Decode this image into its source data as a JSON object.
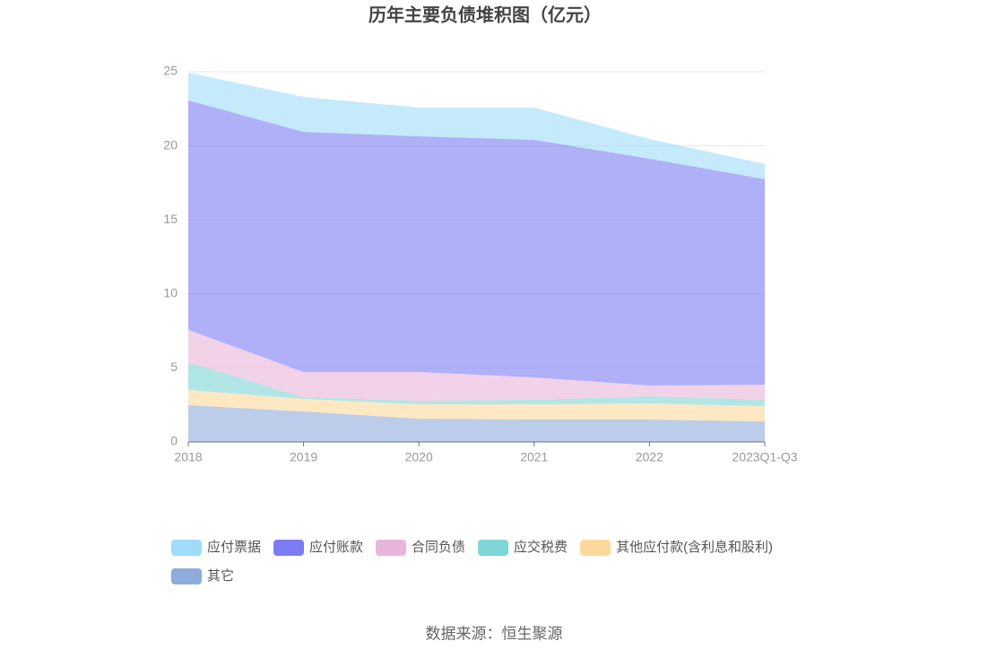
{
  "chart_data": {
    "type": "stacked_area",
    "title": "历年主要负债堆积图（亿元）",
    "categories": [
      "2018",
      "2019",
      "2020",
      "2021",
      "2022",
      "2023Q1-Q3"
    ],
    "series": [
      {
        "name": "应付票据",
        "color": "#9fdcf9",
        "values": [
          1.88,
          2.36,
          1.94,
          2.18,
          1.33,
          1.03
        ]
      },
      {
        "name": "应付账款",
        "color": "#7b7cf3",
        "values": [
          15.49,
          16.22,
          15.92,
          16.04,
          15.32,
          13.87
        ]
      },
      {
        "name": "合同负债",
        "color": "#e9b4d9",
        "values": [
          2.18,
          1.69,
          1.94,
          1.51,
          0.72,
          1.02
        ]
      },
      {
        "name": "应交税费",
        "color": "#7fd6d6",
        "values": [
          1.88,
          0.12,
          0.24,
          0.31,
          0.49,
          0.43
        ]
      },
      {
        "name": "其他应付款(含利息和股利)",
        "color": "#fcd99b",
        "values": [
          1.03,
          0.85,
          0.97,
          1.03,
          1.09,
          1.03
        ]
      },
      {
        "name": "其它",
        "color": "#8eabdc",
        "values": [
          2.48,
          2.06,
          1.57,
          1.51,
          1.51,
          1.39
        ]
      }
    ],
    "ylim": [
      0,
      25
    ],
    "yticks": [
      0,
      5,
      10,
      15,
      20,
      25
    ],
    "grid": true,
    "source": "数据来源：恒生聚源"
  }
}
